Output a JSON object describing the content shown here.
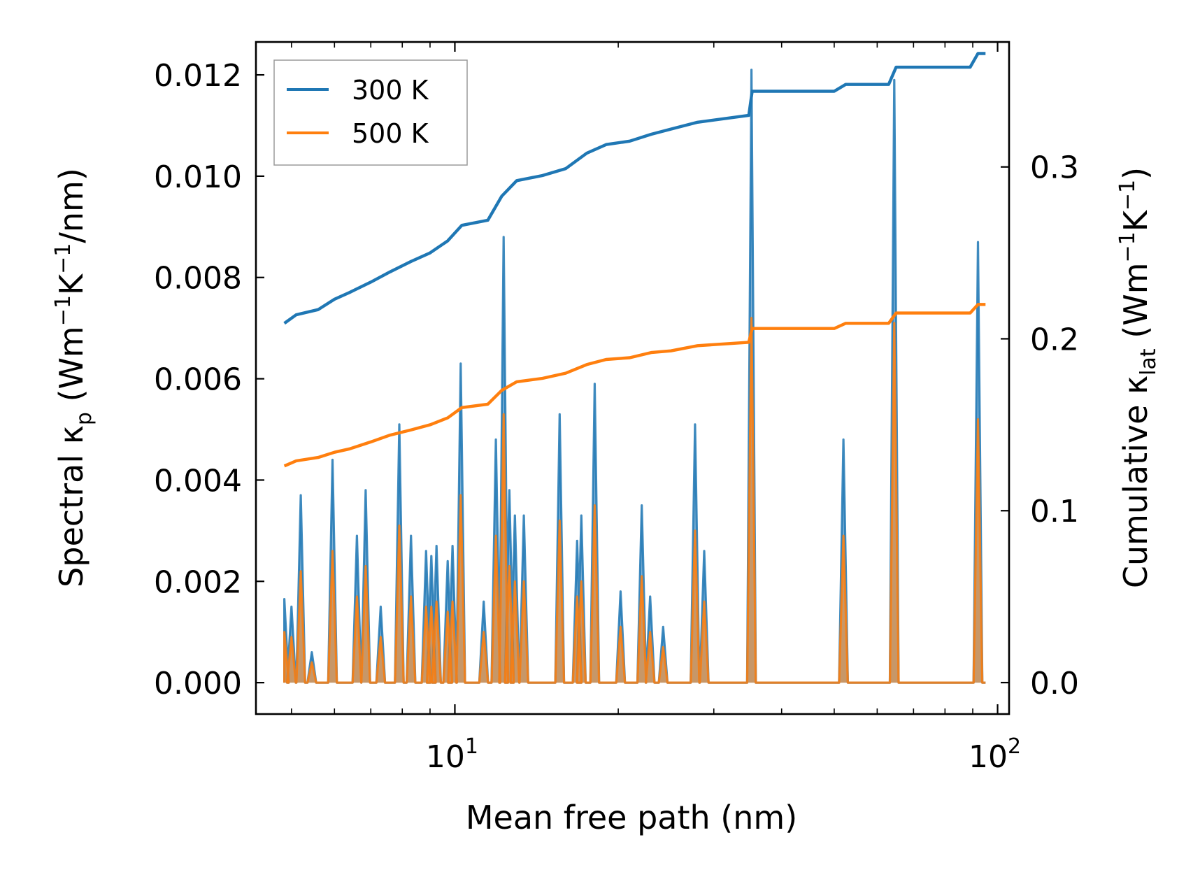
{
  "chart_data": {
    "type": "line",
    "xscale": "log",
    "xlim": [
      4.3,
      105
    ],
    "ylim_left": [
      -0.00062,
      0.01265
    ],
    "ylim_right": [
      -0.0183,
      0.3727
    ],
    "xlabel": "Mean free path (nm)",
    "ylabel_left": {
      "main": "Spectral κ",
      "sub": "p",
      "unit_pre": " (Wm",
      "exp1": "−1",
      "unit_mid": "K",
      "exp2": "−1",
      "unit_post": "/nm)"
    },
    "ylabel_right": {
      "main": "Cumulative κ",
      "sub": "lat",
      "unit_pre": " (Wm",
      "exp1": "−1",
      "unit_mid": "K",
      "exp2": "−1",
      "unit_post": ")"
    },
    "x_ticks": [
      {
        "value": 10,
        "base": "10",
        "exp": "1"
      },
      {
        "value": 100,
        "base": "10",
        "exp": "2"
      }
    ],
    "y_left_ticks": [
      {
        "value": 0.0,
        "label": "0.000"
      },
      {
        "value": 0.002,
        "label": "0.002"
      },
      {
        "value": 0.004,
        "label": "0.004"
      },
      {
        "value": 0.006,
        "label": "0.006"
      },
      {
        "value": 0.008,
        "label": "0.008"
      },
      {
        "value": 0.01,
        "label": "0.010"
      },
      {
        "value": 0.012,
        "label": "0.012"
      }
    ],
    "y_right_ticks": [
      {
        "value": 0.0,
        "label": "0.0"
      },
      {
        "value": 0.1,
        "label": "0.1"
      },
      {
        "value": 0.2,
        "label": "0.2"
      },
      {
        "value": 0.3,
        "label": "0.3"
      }
    ],
    "legend": {
      "position": "top-left",
      "entries": [
        "300 K",
        "500 K"
      ]
    },
    "series": [
      {
        "name": "300 K",
        "color": "#1f77b4",
        "spectral_peaks": [
          [
            4.85,
            0.00165
          ],
          [
            5.0,
            0.0015
          ],
          [
            5.2,
            0.0037
          ],
          [
            5.45,
            0.0006
          ],
          [
            5.95,
            0.0044
          ],
          [
            6.6,
            0.0029
          ],
          [
            6.85,
            0.0038
          ],
          [
            7.3,
            0.0015
          ],
          [
            7.9,
            0.0051
          ],
          [
            8.3,
            0.0029
          ],
          [
            8.85,
            0.0026
          ],
          [
            9.05,
            0.0025
          ],
          [
            9.25,
            0.0027
          ],
          [
            9.7,
            0.0024
          ],
          [
            9.9,
            0.0027
          ],
          [
            10.25,
            0.0063
          ],
          [
            11.3,
            0.0016
          ],
          [
            11.9,
            0.0048
          ],
          [
            12.3,
            0.0088
          ],
          [
            12.6,
            0.0038
          ],
          [
            12.9,
            0.0033
          ],
          [
            13.4,
            0.0033
          ],
          [
            15.6,
            0.0053
          ],
          [
            16.8,
            0.0028
          ],
          [
            17.1,
            0.0033
          ],
          [
            18.1,
            0.0059
          ],
          [
            20.2,
            0.0018
          ],
          [
            22.1,
            0.0035
          ],
          [
            22.9,
            0.0017
          ],
          [
            24.2,
            0.0011
          ],
          [
            27.7,
            0.0051
          ],
          [
            28.8,
            0.0026
          ],
          [
            35.2,
            0.0121
          ],
          [
            52.0,
            0.0048
          ],
          [
            64.5,
            0.0119
          ],
          [
            92.0,
            0.0087
          ]
        ],
        "cumulative": [
          [
            4.85,
            0.209
          ],
          [
            5.1,
            0.214
          ],
          [
            5.6,
            0.217
          ],
          [
            6.0,
            0.223
          ],
          [
            6.4,
            0.227
          ],
          [
            7.0,
            0.233
          ],
          [
            7.6,
            0.239
          ],
          [
            8.3,
            0.245
          ],
          [
            9.0,
            0.25
          ],
          [
            9.7,
            0.257
          ],
          [
            10.3,
            0.266
          ],
          [
            11.5,
            0.269
          ],
          [
            12.2,
            0.283
          ],
          [
            13.0,
            0.292
          ],
          [
            14.5,
            0.295
          ],
          [
            16.0,
            0.299
          ],
          [
            17.5,
            0.308
          ],
          [
            19.0,
            0.313
          ],
          [
            21.0,
            0.315
          ],
          [
            23.0,
            0.319
          ],
          [
            25.0,
            0.322
          ],
          [
            28.0,
            0.326
          ],
          [
            34.8,
            0.33
          ],
          [
            35.3,
            0.344
          ],
          [
            50.0,
            0.344
          ],
          [
            52.5,
            0.348
          ],
          [
            63.0,
            0.348
          ],
          [
            65.0,
            0.358
          ],
          [
            89.0,
            0.358
          ],
          [
            92.0,
            0.366
          ],
          [
            95.0,
            0.366
          ]
        ]
      },
      {
        "name": "500 K",
        "color": "#ff7f0e",
        "spectral_peaks": [
          [
            4.85,
            0.001
          ],
          [
            5.0,
            0.0009
          ],
          [
            5.2,
            0.0022
          ],
          [
            5.45,
            0.0004
          ],
          [
            5.95,
            0.0026
          ],
          [
            6.6,
            0.0017
          ],
          [
            6.85,
            0.0023
          ],
          [
            7.3,
            0.0009
          ],
          [
            7.9,
            0.0031
          ],
          [
            8.3,
            0.0017
          ],
          [
            8.85,
            0.0015
          ],
          [
            9.05,
            0.0015
          ],
          [
            9.25,
            0.0016
          ],
          [
            9.7,
            0.0014
          ],
          [
            9.9,
            0.0016
          ],
          [
            10.25,
            0.0037
          ],
          [
            11.3,
            0.001
          ],
          [
            11.9,
            0.0029
          ],
          [
            12.3,
            0.0053
          ],
          [
            12.6,
            0.0023
          ],
          [
            12.9,
            0.002
          ],
          [
            13.4,
            0.002
          ],
          [
            15.6,
            0.0032
          ],
          [
            16.8,
            0.0017
          ],
          [
            17.1,
            0.002
          ],
          [
            18.1,
            0.0035
          ],
          [
            20.2,
            0.0011
          ],
          [
            22.1,
            0.0021
          ],
          [
            22.9,
            0.001
          ],
          [
            24.2,
            0.0007
          ],
          [
            27.7,
            0.003
          ],
          [
            28.8,
            0.0016
          ],
          [
            35.2,
            0.0072
          ],
          [
            52.0,
            0.0029
          ],
          [
            64.5,
            0.0071
          ],
          [
            92.0,
            0.0052
          ]
        ],
        "cumulative": [
          [
            4.85,
            0.126
          ],
          [
            5.1,
            0.129
          ],
          [
            5.6,
            0.131
          ],
          [
            6.0,
            0.134
          ],
          [
            6.4,
            0.136
          ],
          [
            7.0,
            0.14
          ],
          [
            7.6,
            0.144
          ],
          [
            8.3,
            0.147
          ],
          [
            9.0,
            0.15
          ],
          [
            9.7,
            0.154
          ],
          [
            10.3,
            0.16
          ],
          [
            11.5,
            0.162
          ],
          [
            12.2,
            0.17
          ],
          [
            13.0,
            0.175
          ],
          [
            14.5,
            0.177
          ],
          [
            16.0,
            0.18
          ],
          [
            17.5,
            0.185
          ],
          [
            19.0,
            0.188
          ],
          [
            21.0,
            0.189
          ],
          [
            23.0,
            0.192
          ],
          [
            25.0,
            0.193
          ],
          [
            28.0,
            0.196
          ],
          [
            34.8,
            0.198
          ],
          [
            35.3,
            0.206
          ],
          [
            50.0,
            0.206
          ],
          [
            52.5,
            0.209
          ],
          [
            63.0,
            0.209
          ],
          [
            65.0,
            0.215
          ],
          [
            89.0,
            0.215
          ],
          [
            92.0,
            0.22
          ],
          [
            95.0,
            0.22
          ]
        ]
      }
    ]
  }
}
